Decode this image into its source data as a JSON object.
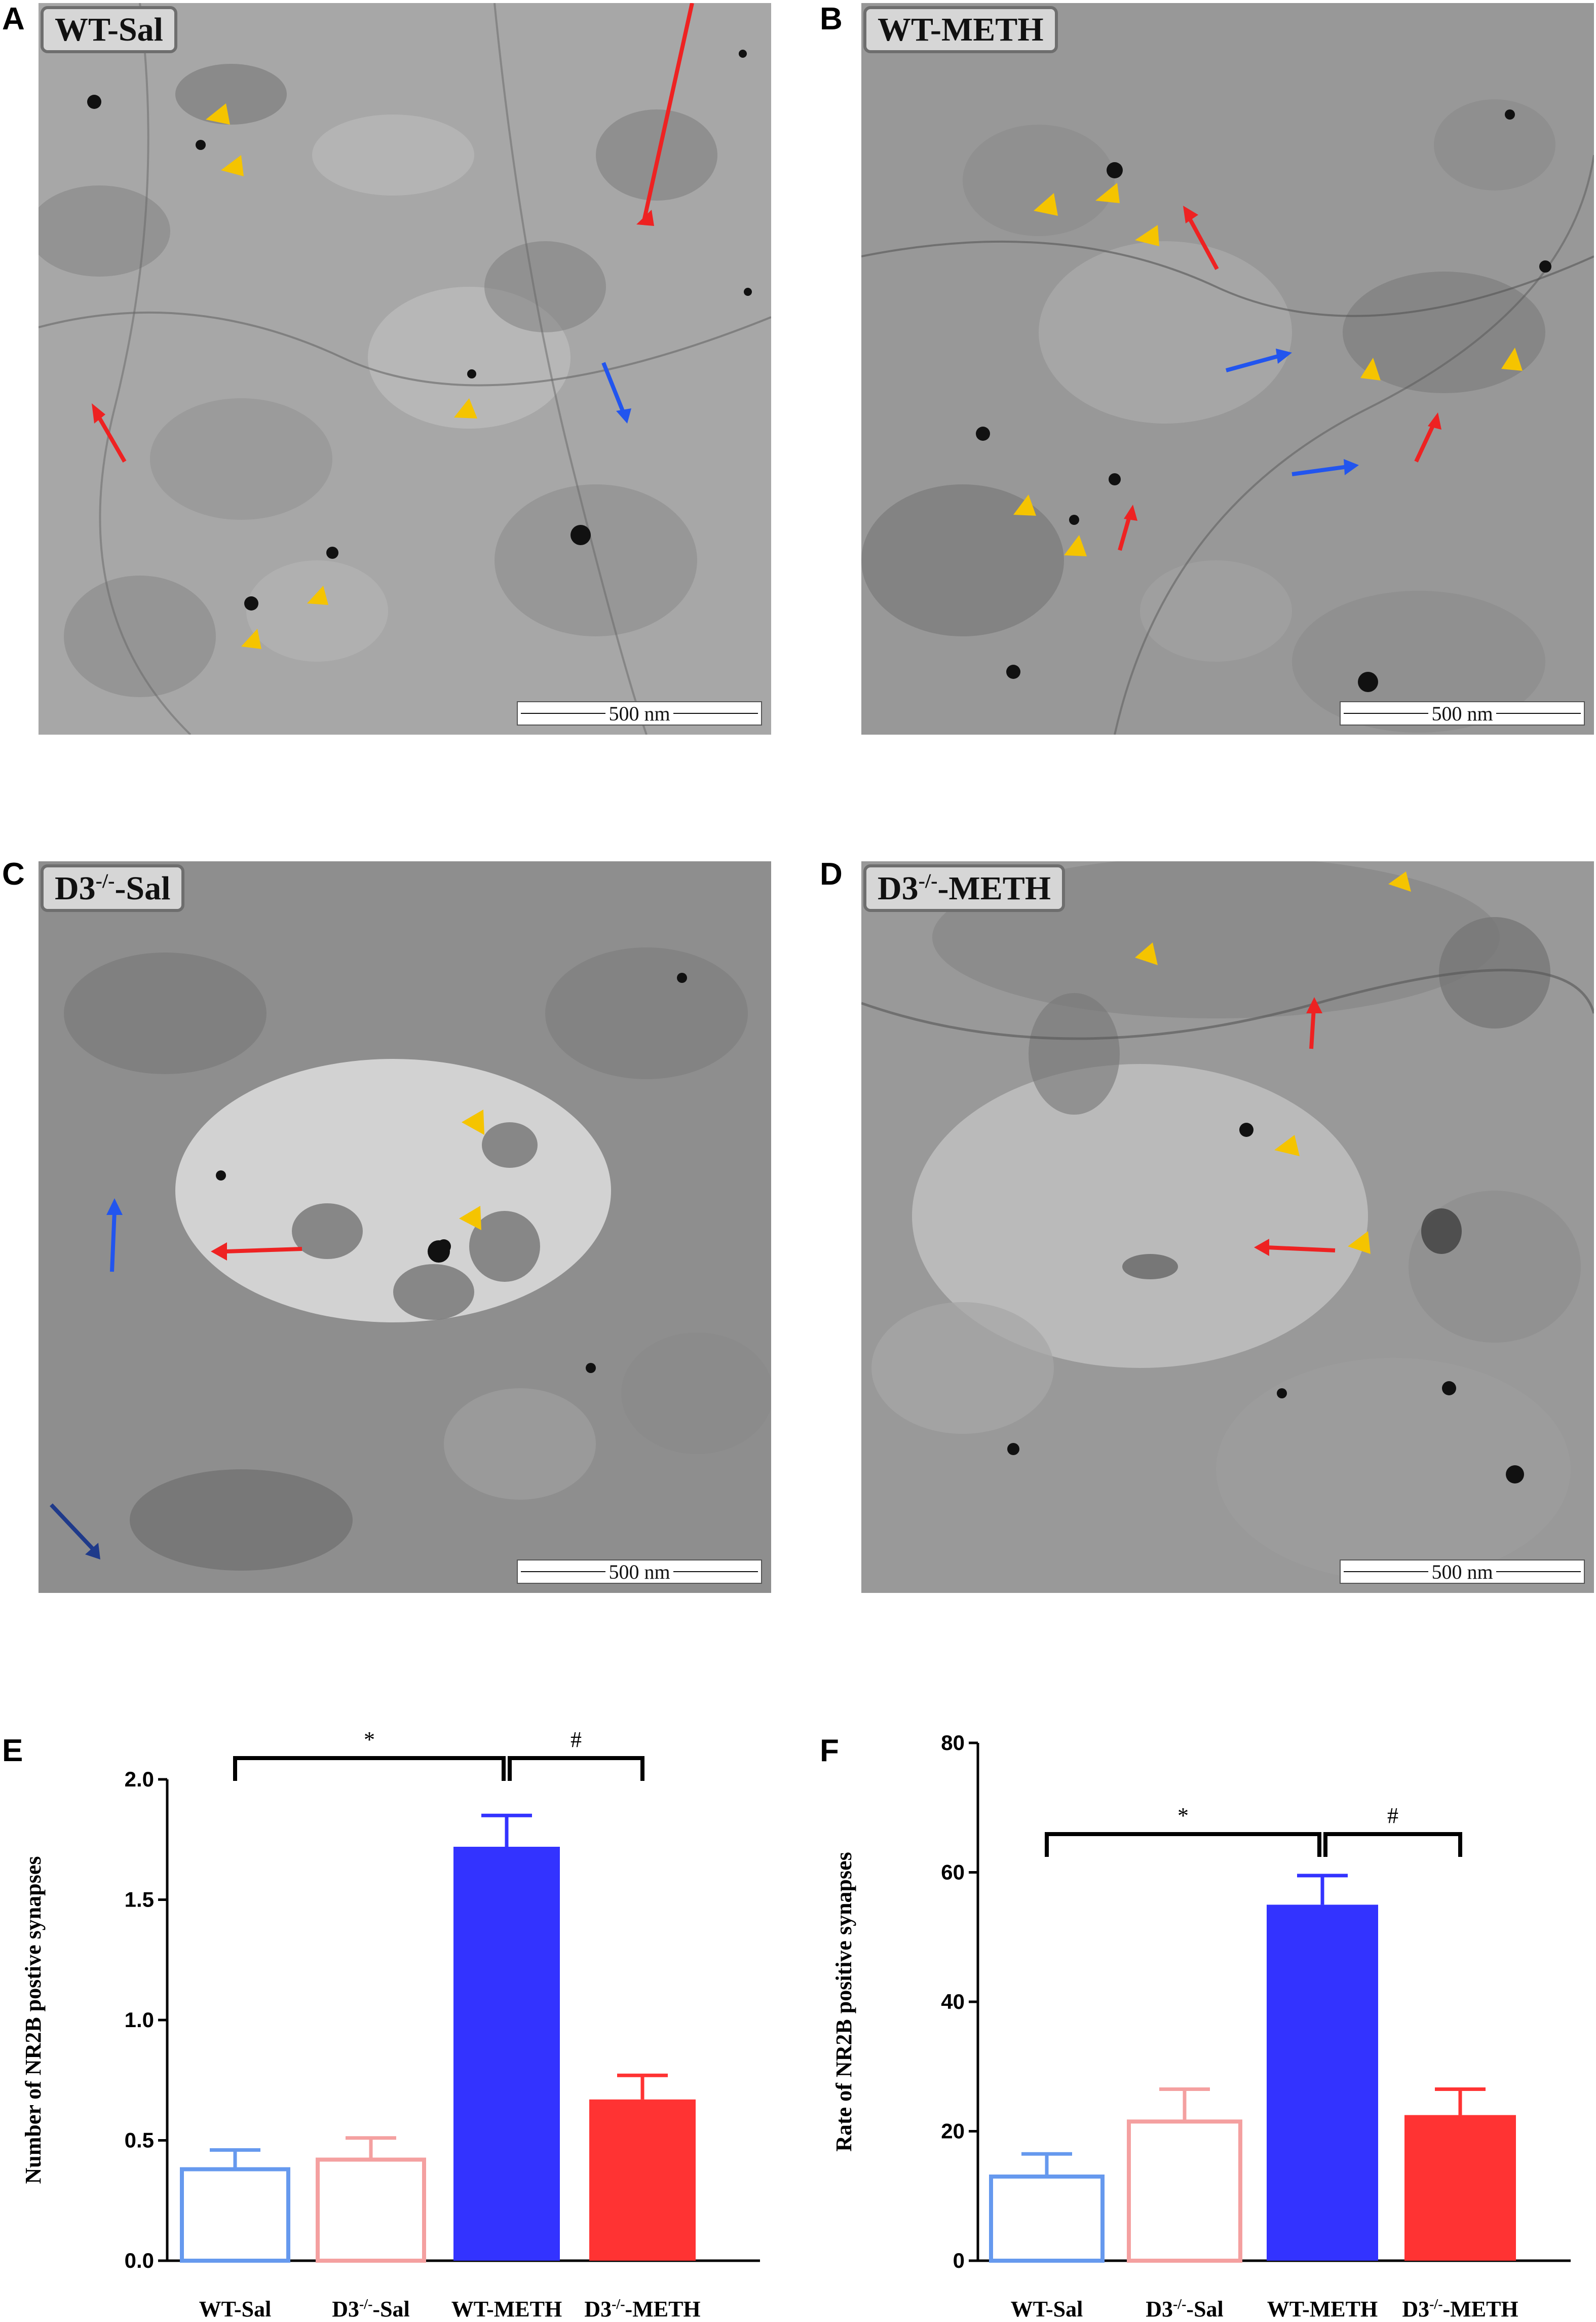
{
  "panels": [
    {
      "letter": "A",
      "label": "WT-Sal",
      "scale": "500 nm"
    },
    {
      "letter": "B",
      "label": "WT-METH",
      "scale": "500 nm"
    },
    {
      "letter": "C",
      "label_main": "D3",
      "label_sup": "-/-",
      "label_rest": "-Sal",
      "scale": "500 nm"
    },
    {
      "letter": "D",
      "label_main": "D3",
      "label_sup": "-/-",
      "label_rest": "-METH",
      "scale": "500 nm"
    }
  ],
  "colors": {
    "wt_sal": "#6699ee",
    "d3_sal": "#f4a0a0",
    "wt_meth": "#3333ff",
    "d3_meth": "#ff3333",
    "yellow_arrowhead": "#f5c400",
    "red_arrow": "#ee2222",
    "blue_arrow": "#2255ee"
  },
  "chart_data": [
    {
      "letter": "E",
      "type": "bar",
      "categories": [
        "WT-Sal",
        "D3-/--Sal",
        "WT-METH",
        "D3-/--METH"
      ],
      "values": [
        0.38,
        0.42,
        1.72,
        0.67
      ],
      "errors": [
        0.08,
        0.09,
        0.13,
        0.1
      ],
      "filled": [
        false,
        false,
        true,
        true
      ],
      "ylabel": "Number of NR2B postive synapses",
      "ylim": [
        0,
        2.0
      ],
      "yticks": [
        "0.0",
        "0.5",
        "1.0",
        "1.5",
        "2.0"
      ],
      "annotations": [
        {
          "text": "*",
          "from": 0,
          "to": 2
        },
        {
          "text": "#",
          "from": 2,
          "to": 3
        }
      ]
    },
    {
      "letter": "F",
      "type": "bar",
      "categories": [
        "WT-Sal",
        "D3-/--Sal",
        "WT-METH",
        "D3-/--METH"
      ],
      "values": [
        13,
        21.5,
        55,
        22.5
      ],
      "errors": [
        3.5,
        5,
        4.5,
        4
      ],
      "filled": [
        false,
        false,
        true,
        true
      ],
      "ylabel": "Rate of NR2B positive synapses",
      "ylim": [
        0,
        80
      ],
      "yticks": [
        "0",
        "20",
        "40",
        "60",
        "80"
      ],
      "annotations": [
        {
          "text": "*",
          "from": 0,
          "to": 2
        },
        {
          "text": "#",
          "from": 2,
          "to": 3
        }
      ]
    }
  ],
  "cat_labels": {
    "wt_sal": "WT-Sal",
    "d3": "D3",
    "sup": "-/-",
    "sal": "-Sal",
    "wt_meth": "WT-METH",
    "meth": "-METH"
  }
}
